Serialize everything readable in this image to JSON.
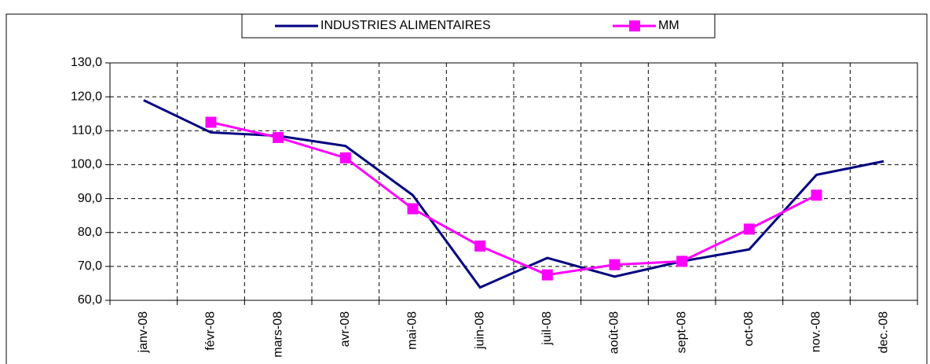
{
  "chart_data": {
    "type": "line",
    "categories": [
      "janv-08",
      "févr-08",
      "mars-08",
      "avr-08",
      "mai-08",
      "juin-08",
      "juil-08",
      "août-08",
      "sept-08",
      "oct-08",
      "nov.-08",
      "dec.-08"
    ],
    "series": [
      {
        "name": "INDUSTRIES ALIMENTAIRES",
        "color": "#000080",
        "marker": false,
        "values": [
          119,
          109.5,
          108.5,
          105.5,
          91,
          63.8,
          72.5,
          67,
          71.5,
          75,
          97,
          101
        ]
      },
      {
        "name": "MM",
        "color": "#ff00ff",
        "marker": true,
        "values": [
          null,
          112.5,
          108,
          102,
          87,
          76,
          67.5,
          70.5,
          71.5,
          81,
          91,
          null
        ]
      }
    ],
    "ylim": [
      60,
      130
    ],
    "yticks": [
      {
        "value": 60,
        "label": "60,0"
      },
      {
        "value": 70,
        "label": "70,0"
      },
      {
        "value": 80,
        "label": "80,0"
      },
      {
        "value": 90,
        "label": "90,0"
      },
      {
        "value": 100,
        "label": "100,0"
      },
      {
        "value": 110,
        "label": "110,0"
      },
      {
        "value": 120,
        "label": "120,0"
      },
      {
        "value": 130,
        "label": "130,0"
      }
    ],
    "grid": true,
    "legend": "top"
  }
}
